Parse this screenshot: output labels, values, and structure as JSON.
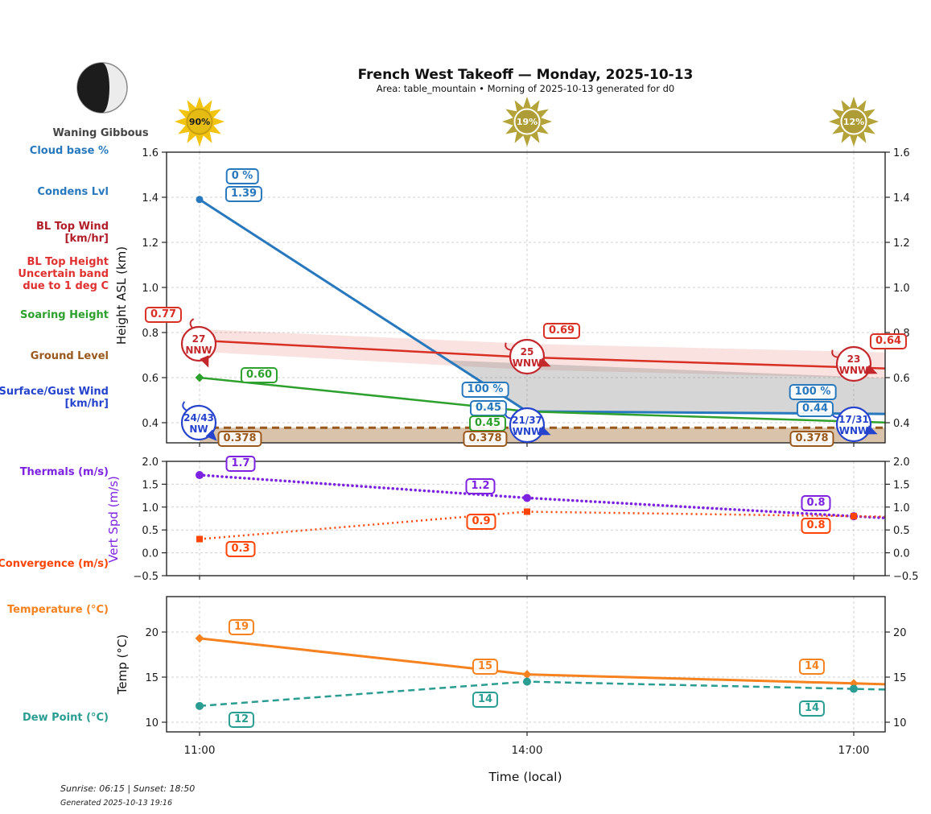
{
  "header": {
    "title": "French West Takeoff — Monday, 2025-10-13",
    "subtitle": "Area: table_mountain • Morning of 2025-10-13 generated for d0",
    "moon_phase": "Waning Gibbous"
  },
  "suns": [
    {
      "label": "90%",
      "ray_color": "#f2c30f",
      "core_color": "#e5bc13",
      "ring_color": "#c79e10",
      "text_color": "#1a1a1a"
    },
    {
      "label": "19%",
      "ray_color": "#b4a339",
      "core_color": "#ae9d36",
      "ring_color": "#ffffff",
      "text_color": "#ffffff"
    },
    {
      "label": "12%",
      "ray_color": "#b4a339",
      "core_color": "#ae9d36",
      "ring_color": "#ffffff",
      "text_color": "#ffffff"
    }
  ],
  "rows": {
    "cloud_base": "Cloud base %",
    "condens": "Condens Lvl",
    "bl_wind_1": "BL Top Wind",
    "bl_wind_2": "[km/hr]",
    "blh_1": "BL Top Height",
    "blh_2": "Uncertain band",
    "blh_3": "due to 1 deg C",
    "soaring": "Soaring Height",
    "ground": "Ground Level",
    "sfc_1": "Surface/Gust Wind",
    "sfc_2": "[km/hr]",
    "thermals": "Thermals (m/s)",
    "convergence": "Convergence (m/s)",
    "temperature": "Temperature (°C)",
    "dewpoint": "Dew Point (°C)"
  },
  "chart_data": [
    {
      "type": "line",
      "panel": "height",
      "ylabel": "Height ASL (km)",
      "x_labels": [
        "11:00",
        "14:00",
        "17:00"
      ],
      "yticks": [
        "1.6",
        "1.4",
        "1.2",
        "1.0",
        "0.8",
        "0.6",
        "0.4"
      ],
      "ylim": [
        0.31,
        1.6
      ],
      "series": [
        {
          "name": "Condens Lvl",
          "color": "#2878be",
          "values": [
            1.39,
            0.45,
            0.44
          ],
          "value_labels": [
            "1.39",
            "0.45",
            "0.44"
          ]
        },
        {
          "name": "Cloud base %",
          "color": "#2878be",
          "percent_labels": [
            "0 %",
            "100 %",
            "100 %"
          ]
        },
        {
          "name": "BL Top Height",
          "color": "#d93025",
          "values": [
            0.765,
            0.69,
            0.645
          ],
          "value_labels": [
            "0.77",
            "0.69",
            "0.64"
          ],
          "band_top": [
            0.815,
            0.75,
            0.715
          ],
          "band_bottom": [
            0.715,
            0.635,
            0.6
          ]
        },
        {
          "name": "Soaring Height",
          "color": "#2da02d",
          "values": [
            0.6,
            0.45,
            0.405
          ],
          "value_labels": [
            "0.60",
            "0.45",
            ""
          ]
        },
        {
          "name": "Ground Level",
          "color": "#99591c",
          "values": [
            0.378,
            0.378,
            0.378
          ],
          "value_labels": [
            "0.378",
            "0.378",
            "0.378"
          ]
        }
      ],
      "wind_markers": {
        "bl_top": {
          "color": "#c3272b",
          "entries": [
            {
              "speed": "27",
              "dir": "NNW"
            },
            {
              "speed": "25",
              "dir": "WNW"
            },
            {
              "speed": "23",
              "dir": "WNW"
            }
          ]
        },
        "surface": {
          "color": "#2543cc",
          "entries": [
            {
              "speed": "24/43",
              "dir": "NW"
            },
            {
              "speed": "21/37",
              "dir": "WNW"
            },
            {
              "speed": "17/31",
              "dir": "WNW"
            }
          ]
        }
      }
    },
    {
      "type": "line",
      "panel": "vert_speed",
      "ylabel": "Vert Spd (m/s)",
      "yticks": [
        "2.0",
        "1.5",
        "1.0",
        "0.5",
        "0.0",
        "−0.5"
      ],
      "ylim": [
        -0.5,
        2.0
      ],
      "series": [
        {
          "name": "Thermals (m/s)",
          "color": "#7c22e0",
          "values": [
            1.7,
            1.2,
            0.8
          ],
          "value_labels": [
            "1.7",
            "1.2",
            "0.8"
          ]
        },
        {
          "name": "Convergence (m/s)",
          "color": "#ff4405",
          "values": [
            0.3,
            0.9,
            0.8
          ],
          "value_labels": [
            "0.3",
            "0.9",
            "0.8"
          ]
        }
      ]
    },
    {
      "type": "line",
      "panel": "temperature",
      "ylabel": "Temp (°C)",
      "xlabel": "Time (local)",
      "yticks": [
        "20",
        "15",
        "10"
      ],
      "ylim": [
        8.9,
        23.9
      ],
      "series": [
        {
          "name": "Temperature (°C)",
          "color": "#f5821f",
          "values": [
            19.3,
            15.3,
            14.3
          ],
          "value_labels": [
            "19",
            "15",
            "14"
          ]
        },
        {
          "name": "Dew Point (°C)",
          "color": "#2a9d92",
          "values": [
            11.8,
            14.5,
            13.7
          ],
          "value_labels": [
            "12",
            "14",
            "14"
          ]
        }
      ]
    }
  ],
  "footer": {
    "sun_times": "Sunrise: 06:15 | Sunset: 18:50",
    "generated": "Generated 2025-10-13 19:16"
  }
}
